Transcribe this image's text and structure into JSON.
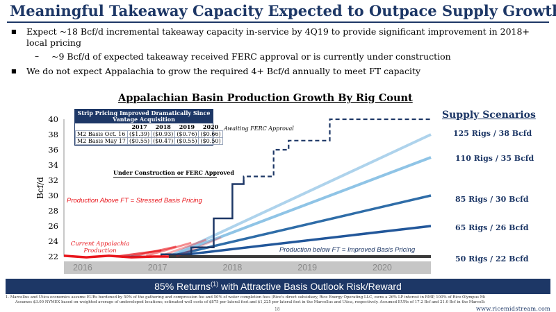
{
  "slide": {
    "title": "Meaningful Takeaway Capacity Expected to Outpace Supply Growth",
    "bullets": [
      {
        "text": "Expect ~18 Bcf/d incremental takeaway capacity in-service by 4Q19 to provide significant improvement in 2018+",
        "cont": "local pricing"
      },
      {
        "text": "~9 Bcf/d of expected takeaway received FERC approval or is currently under construction",
        "sub": true
      },
      {
        "text": "We do not expect Appalachia to grow the required 4+ Bcf/d annually to meet FT capacity"
      }
    ],
    "banner": {
      "text": "85% Returns",
      "sup": "(1)",
      "rest": " with Attractive Basis Outlook Risk/Reward"
    },
    "footnote_line1": "1.     Marcellus and Utica economics assume EURs burdened by 50% of the gathering and compression fee and 50% of water completion fees (Rice's direct subsidiary, Rice Energy Operating LLC, owns a 26% LP interest in RMP, 100% of Rice Olympus Midstream and 91.75% of RMP IDRs).",
    "footnote_line2": "Assumes $3.00 NYMEX based on weighted average of undeveloped locations; estimated well costs of $875 per lateral foot and $1,225 per lateral foot in the Marcellus and Utica, respectively. Assumed EURs of 17.2 Bcf and 21.0 Bcf in the Marcellus and Utica, respectively.",
    "page_number": "18",
    "website": "www.ricemidstream.com"
  },
  "colors": {
    "navy": "#1d3766",
    "red": "#e8151b",
    "scenario_light": "#aed3ec",
    "scenario_mid": "#8fc4e6",
    "scenario_dark": "#2f6da8",
    "scenario_darker": "#22579a",
    "flat": "#3a3a3a",
    "axis_band": "#c6c6c6"
  },
  "pricing_table": {
    "title": "Strip Pricing Improved Dramatically Since Vantage Acquisition",
    "years": [
      "2017",
      "2018",
      "2019",
      "2020"
    ],
    "rows": [
      {
        "label": "M2 Basis Oct. 16",
        "values": [
          "($1.39)",
          "($0.93)",
          "($0.76)",
          "($0.66)"
        ]
      },
      {
        "label": "M2 Basis May 17",
        "values": [
          "($0.55)",
          "($0.47)",
          "($0.55)",
          "($0.50)"
        ]
      }
    ]
  },
  "chart_data": {
    "type": "line",
    "title": "Appalachian Basin Production Growth By Rig Count",
    "ylabel": "Bcf/d",
    "ylim": [
      22,
      40
    ],
    "yticks": [
      22,
      24,
      26,
      28,
      30,
      32,
      34,
      36,
      38,
      40
    ],
    "xlim": [
      2015.6,
      2020.5
    ],
    "x_labels": [
      "2016",
      "2017",
      "2018",
      "2019",
      "2020"
    ],
    "scenarios_title": "Supply Scenarios",
    "series": [
      {
        "name": "125 Rigs / 38 Bcfd",
        "x": [
          2017.0,
          2020.5
        ],
        "y": [
          22,
          38
        ]
      },
      {
        "name": "110 Rigs / 35 Bcfd",
        "x": [
          2017.0,
          2020.5
        ],
        "y": [
          22,
          35
        ]
      },
      {
        "name": "85 Rigs / 30 Bcfd",
        "x": [
          2017.0,
          2020.5
        ],
        "y": [
          22,
          30
        ]
      },
      {
        "name": "65 Rigs / 26 Bcfd",
        "x": [
          2017.0,
          2020.5
        ],
        "y": [
          22,
          26
        ]
      },
      {
        "name": "50 Rigs / 22 Bcfd",
        "x": [
          2017.0,
          2020.5
        ],
        "y": [
          22,
          22
        ]
      }
    ],
    "current_production": {
      "x": [
        2015.6,
        2015.9,
        2016.2,
        2016.5,
        2016.8,
        2017.0
      ],
      "y": [
        22.1,
        21.9,
        22.1,
        21.9,
        22.0,
        22.0
      ]
    },
    "takeaway_capacity_approved": {
      "x": [
        2016.4,
        2016.9,
        2016.9,
        2017.3,
        2017.3,
        2017.6,
        2017.6,
        2017.85,
        2017.85,
        2018.0,
        2018.0
      ],
      "y": [
        22.0,
        22.0,
        22.3,
        22.3,
        23.2,
        23.2,
        27.0,
        27.0,
        31.5,
        31.5,
        32.0
      ]
    },
    "takeaway_capacity_pending": {
      "x": [
        2018.0,
        2018.0,
        2018.4,
        2018.4,
        2018.6,
        2018.6,
        2019.15,
        2019.15,
        2020.5
      ],
      "y": [
        32.0,
        32.5,
        32.5,
        36.0,
        36.0,
        37.2,
        37.2,
        40.0,
        40.0
      ]
    },
    "annotations": {
      "awaiting": "Awaiting FERC Approval",
      "under_construction": "Under Construction or FERC Approved",
      "above_ft": "Production Above FT = Stressed Basis Pricing",
      "below_ft": "Production below FT = Improved Basis Pricing",
      "current_line1": "Current Appalachia",
      "current_line2": "Production"
    }
  }
}
